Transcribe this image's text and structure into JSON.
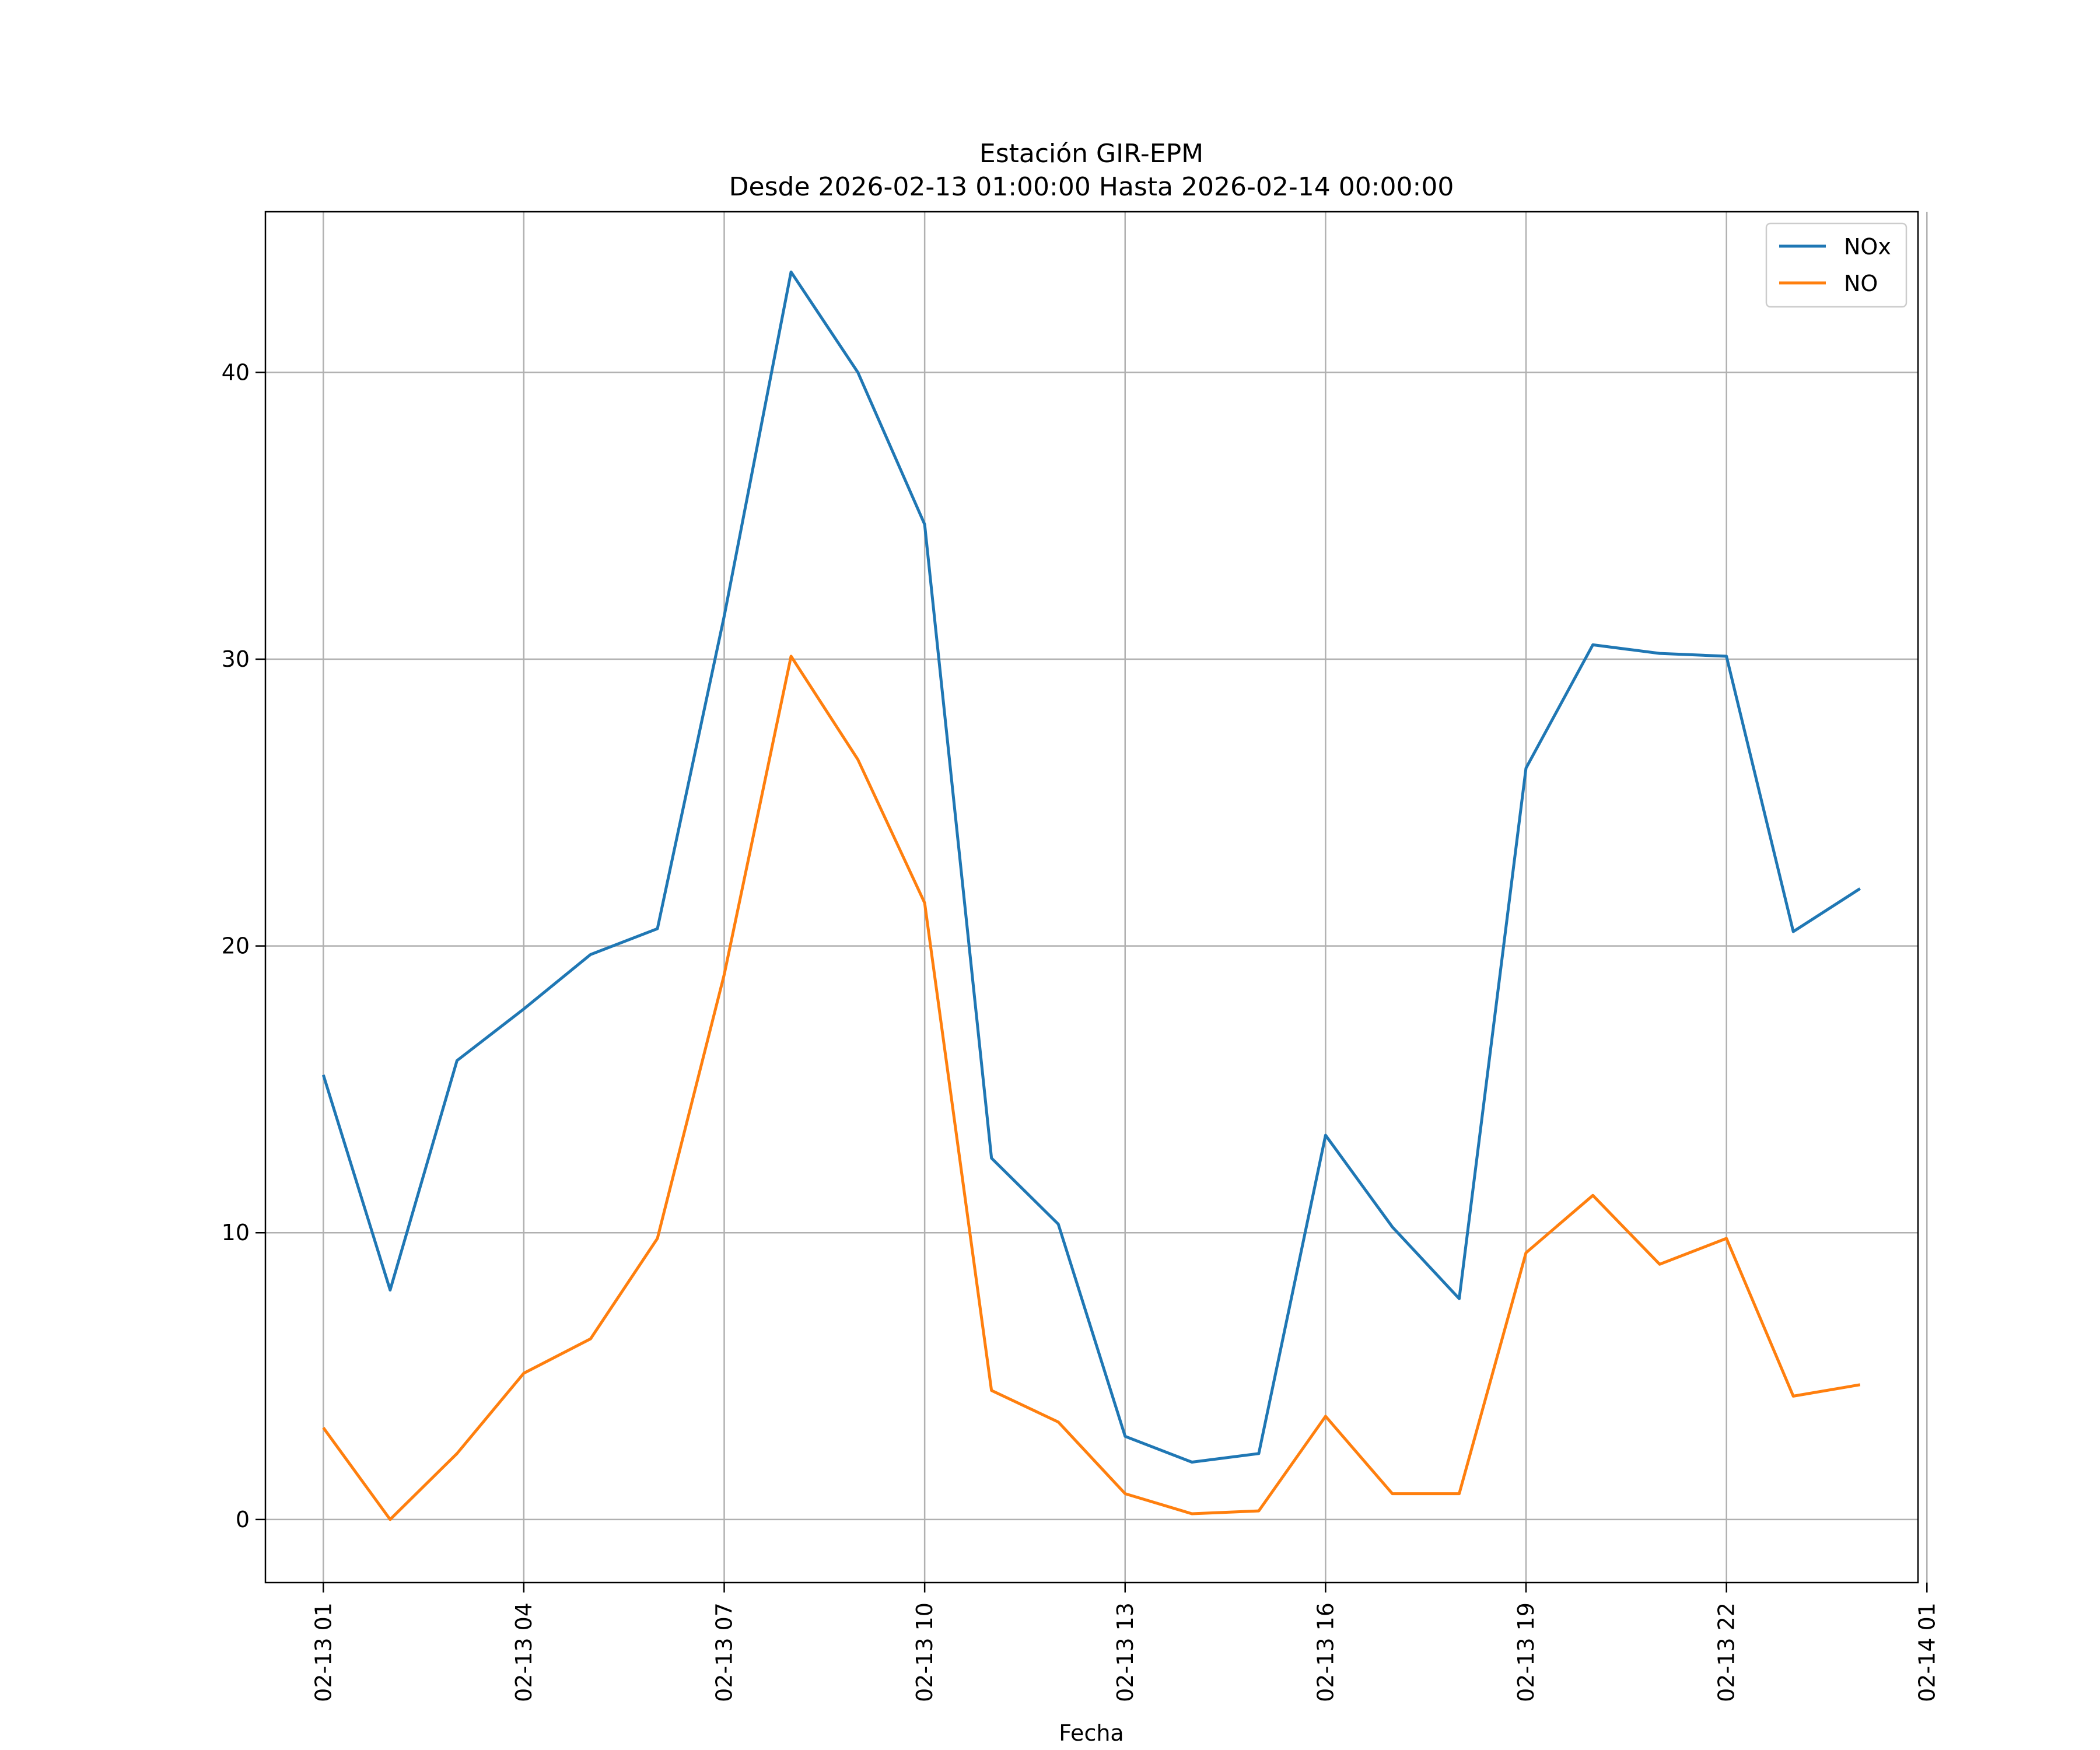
{
  "chart_data": {
    "type": "line",
    "title": "Estación GIR-EPM",
    "subtitle": "Desde 2026-02-13 01:00:00 Hasta 2026-02-14 00:00:00",
    "xlabel": "Fecha",
    "ylabel": "",
    "x": [
      "2026-02-13 01:00",
      "2026-02-13 02:00",
      "2026-02-13 03:00",
      "2026-02-13 04:00",
      "2026-02-13 05:00",
      "2026-02-13 06:00",
      "2026-02-13 07:00",
      "2026-02-13 08:00",
      "2026-02-13 09:00",
      "2026-02-13 10:00",
      "2026-02-13 11:00",
      "2026-02-13 12:00",
      "2026-02-13 13:00",
      "2026-02-13 14:00",
      "2026-02-13 15:00",
      "2026-02-13 16:00",
      "2026-02-13 17:00",
      "2026-02-13 18:00",
      "2026-02-13 19:00",
      "2026-02-13 20:00",
      "2026-02-13 21:00",
      "2026-02-13 22:00",
      "2026-02-13 23:00",
      "2026-02-14 00:00"
    ],
    "series": [
      {
        "name": "NOx",
        "color": "#1f77b4",
        "values": [
          15.5,
          8.0,
          16.0,
          17.8,
          19.7,
          20.6,
          31.5,
          43.5,
          40.0,
          34.7,
          12.6,
          10.3,
          2.9,
          2.0,
          2.3,
          13.4,
          10.2,
          7.7,
          26.2,
          30.5,
          30.2,
          30.1,
          20.5,
          22.0
        ]
      },
      {
        "name": "NO",
        "color": "#ff7f0e",
        "values": [
          3.2,
          0.0,
          2.3,
          5.1,
          6.3,
          9.8,
          19.0,
          30.1,
          26.5,
          21.5,
          4.5,
          3.4,
          0.9,
          0.2,
          0.3,
          3.6,
          0.9,
          0.9,
          9.3,
          11.3,
          8.9,
          9.8,
          4.3,
          4.7
        ]
      }
    ],
    "ylim": [
      -2.2,
      45.6
    ],
    "xlim": [
      "2026-02-13 00:08",
      "2026-02-14 00:52"
    ],
    "y_ticks": [
      0,
      10,
      20,
      30,
      40
    ],
    "y_tick_labels": [
      "0",
      "10",
      "20",
      "30",
      "40"
    ],
    "x_ticks": [
      "2026-02-13 01:00",
      "2026-02-13 04:00",
      "2026-02-13 07:00",
      "2026-02-13 10:00",
      "2026-02-13 13:00",
      "2026-02-13 16:00",
      "2026-02-13 19:00",
      "2026-02-13 22:00",
      "2026-02-14 01:00"
    ],
    "x_tick_labels": [
      "02-13 01",
      "02-13 04",
      "02-13 07",
      "02-13 10",
      "02-13 13",
      "02-13 16",
      "02-13 19",
      "02-13 22",
      "02-14 01"
    ],
    "grid": true,
    "legend_position": "top-right"
  }
}
